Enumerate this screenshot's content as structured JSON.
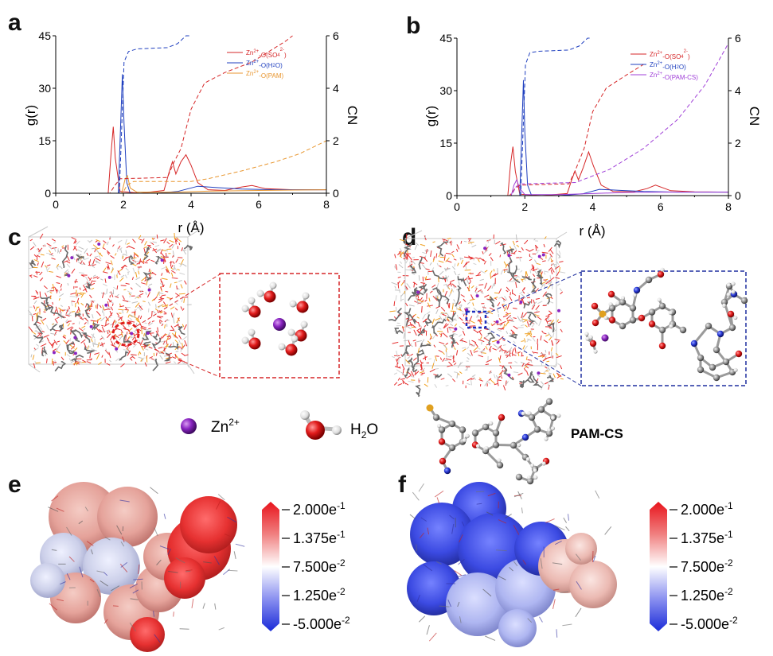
{
  "panels": {
    "a": "a",
    "b": "b",
    "c": "c",
    "d": "d",
    "e": "e",
    "f": "f"
  },
  "chart_data": [
    {
      "panel": "a",
      "type": "line",
      "xlabel": "r (Å)",
      "ylabel": "g(r)",
      "y2label": "CN",
      "xlim": [
        0,
        8
      ],
      "ylim": [
        0,
        45
      ],
      "y2lim": [
        0,
        6
      ],
      "xticks": [
        "0",
        "2",
        "4",
        "6",
        "8"
      ],
      "yticks": [
        "0",
        "15",
        "30",
        "45"
      ],
      "y2ticks": [
        "0",
        "2",
        "4",
        "6"
      ],
      "legend_position": "top-right",
      "series": [
        {
          "name": "Zn²⁺-O(SO₄²⁻)",
          "color": "#d62728",
          "x": [
            0,
            1.55,
            1.64,
            1.7,
            1.76,
            1.9,
            2.5,
            3.2,
            3.35,
            3.45,
            3.55,
            3.7,
            3.85,
            4.0,
            4.2,
            4.5,
            5.0,
            5.5,
            5.8,
            6.2,
            7.0,
            8.0
          ],
          "y": [
            0,
            0,
            12,
            19,
            10,
            0.5,
            0,
            0.8,
            6,
            9,
            5.5,
            9,
            11,
            8,
            3,
            1,
            0.8,
            1.8,
            2.2,
            1.3,
            1,
            1
          ]
        },
        {
          "name": "Zn²⁺-O(H₂O)",
          "color": "#1f3fbf",
          "x": [
            0,
            1.85,
            1.92,
            1.97,
            2.02,
            2.1,
            2.2,
            3.0,
            3.6,
            4.2,
            4.8,
            5.5,
            6.5,
            8.0
          ],
          "y": [
            0,
            0,
            20,
            34,
            20,
            3,
            0,
            0,
            0.5,
            2,
            1.6,
            1.2,
            1,
            1
          ]
        },
        {
          "name": "Zn²⁺-O(PAM)",
          "color": "#e8962f",
          "x": [
            0,
            1.95,
            2.05,
            2.12,
            2.2,
            2.4,
            3.5,
            4.5,
            6.0,
            8.0
          ],
          "y": [
            0,
            0,
            4,
            5,
            1.5,
            0.3,
            0.3,
            0.6,
            0.8,
            1
          ]
        }
      ],
      "cn_series": [
        {
          "name": "Zn²⁺-O(SO₄²⁻) CN",
          "color": "#d62728",
          "x": [
            0,
            1.6,
            1.75,
            1.9,
            3.3,
            3.5,
            3.7,
            4.0,
            4.4,
            5.0,
            5.8,
            6.3,
            6.8,
            7.0
          ],
          "y": [
            0,
            0,
            0.3,
            0.55,
            0.6,
            1.2,
            1.7,
            3.2,
            4.2,
            4.6,
            5.0,
            5.4,
            5.8,
            6.0
          ]
        },
        {
          "name": "Zn²⁺-O(H₂O) CN",
          "color": "#1f3fbf",
          "x": [
            0,
            1.88,
            1.95,
            2.02,
            2.15,
            2.4,
            3.3,
            3.6,
            3.85,
            3.95
          ],
          "y": [
            0,
            0,
            2.5,
            5.0,
            5.4,
            5.5,
            5.55,
            5.7,
            6.0,
            6.0
          ]
        },
        {
          "name": "Zn²⁺-O(PAM) CN",
          "color": "#e8962f",
          "x": [
            0,
            1.98,
            2.1,
            2.3,
            4.0,
            4.5,
            5.5,
            6.5,
            7.2,
            8.0
          ],
          "y": [
            0,
            0,
            0.3,
            0.45,
            0.45,
            0.55,
            0.85,
            1.2,
            1.5,
            2.0
          ]
        }
      ]
    },
    {
      "panel": "b",
      "type": "line",
      "xlabel": "r (Å)",
      "ylabel": "g(r)",
      "y2label": "CN",
      "xlim": [
        0,
        8
      ],
      "ylim": [
        0,
        45
      ],
      "y2lim": [
        0,
        6
      ],
      "xticks": [
        "0",
        "2",
        "4",
        "6",
        "8"
      ],
      "yticks": [
        "0",
        "15",
        "30",
        "45"
      ],
      "y2ticks": [
        "0",
        "2",
        "4",
        "6"
      ],
      "legend_position": "top-right",
      "series": [
        {
          "name": "Zn²⁺-O(SO₄²⁻)",
          "color": "#d62728",
          "x": [
            0,
            1.5,
            1.58,
            1.65,
            1.72,
            1.85,
            2.5,
            3.25,
            3.38,
            3.48,
            3.58,
            3.72,
            3.88,
            4.02,
            4.25,
            4.6,
            5.2,
            5.6,
            5.85,
            6.3,
            7.0,
            8.0
          ],
          "y": [
            0,
            0,
            9,
            14,
            7,
            0.4,
            0,
            0.6,
            4.5,
            7,
            4.5,
            8,
            12.5,
            8.5,
            3,
            1.2,
            1.1,
            2,
            3,
            1.4,
            1.1,
            1
          ]
        },
        {
          "name": "Zn²⁺-O(H₂O)",
          "color": "#1f3fbf",
          "x": [
            0,
            1.85,
            1.91,
            1.96,
            2.0,
            2.08,
            2.2,
            3.0,
            3.7,
            4.2,
            4.8,
            5.5,
            6.5,
            8.0
          ],
          "y": [
            0,
            0,
            18,
            33,
            18,
            3,
            0,
            0,
            0.5,
            1.8,
            1.5,
            1.2,
            1,
            1
          ]
        },
        {
          "name": "Zn²⁺-O(PAM-CS)",
          "color": "#a040d8",
          "x": [
            0,
            1.6,
            1.68,
            1.76,
            1.85,
            2.0,
            3.0,
            4.0,
            5.0,
            6.0,
            8.0
          ],
          "y": [
            0,
            0,
            3,
            4.5,
            2,
            0.3,
            0.3,
            0.6,
            0.9,
            1,
            1
          ]
        }
      ],
      "cn_series": [
        {
          "name": "Zn²⁺-O(SO₄²⁻) CN",
          "color": "#d62728",
          "x": [
            0,
            1.55,
            1.7,
            1.85,
            3.3,
            3.5,
            3.75,
            4.0,
            4.4,
            5.0,
            5.5
          ],
          "y": [
            0,
            0,
            0.25,
            0.4,
            0.45,
            1.0,
            1.8,
            3.2,
            4.1,
            4.6,
            5.0
          ]
        },
        {
          "name": "Zn²⁺-O(H₂O) CN",
          "color": "#1f3fbf",
          "x": [
            0,
            1.88,
            1.95,
            2.02,
            2.15,
            2.4,
            3.3,
            3.6,
            3.85,
            3.95
          ],
          "y": [
            0,
            0,
            2.5,
            5.0,
            5.45,
            5.5,
            5.55,
            5.7,
            6.0,
            6.0
          ]
        },
        {
          "name": "Zn²⁺-O(PAM-CS) CN",
          "color": "#a040d8",
          "x": [
            0,
            1.6,
            1.75,
            1.9,
            3.5,
            4.5,
            5.5,
            6.5,
            7.3,
            8.0
          ],
          "y": [
            0,
            0,
            0.35,
            0.45,
            0.5,
            1.0,
            1.8,
            2.9,
            4.2,
            5.8
          ]
        }
      ]
    }
  ],
  "legend_labels": {
    "a": [
      {
        "pre": "Zn",
        "sup1": "2+",
        "mid": "-O(SO",
        "sub": "4",
        "sup2": "2-",
        "post": ")",
        "color": "#d62728"
      },
      {
        "pre": "Zn",
        "sup1": "2+",
        "mid": "-O(H",
        "sub": "2",
        "sup2": "",
        "post": "O)",
        "color": "#1f3fbf"
      },
      {
        "pre": "Zn",
        "sup1": "2+",
        "mid": "-O(PAM)",
        "sub": "",
        "sup2": "",
        "post": "",
        "color": "#e8962f"
      }
    ],
    "b": [
      {
        "pre": "Zn",
        "sup1": "2+",
        "mid": "-O(SO",
        "sub": "4",
        "sup2": "2-",
        "post": ")",
        "color": "#d62728"
      },
      {
        "pre": "Zn",
        "sup1": "2+",
        "mid": "-O(H",
        "sub": "2",
        "sup2": "",
        "post": "O)",
        "color": "#1f3fbf"
      },
      {
        "pre": "Zn",
        "sup1": "2+",
        "mid": "-O(PAM-CS)",
        "sub": "",
        "sup2": "",
        "post": "",
        "color": "#a040d8"
      }
    ]
  },
  "species_legend": {
    "zn_label": "Zn",
    "zn_sup": "2+",
    "water_label": "H",
    "water_sub": "2",
    "water_post": "O",
    "pamcs_label": "PAM-CS"
  },
  "colorbar": {
    "ticks": [
      "2.000e",
      "1.375e",
      "7.500e",
      "1.250e",
      "-5.000e"
    ],
    "exponents": [
      "-1",
      "-1",
      "-2",
      "-2",
      "-2"
    ],
    "max_color": "#e8141c",
    "mid_color": "#ffffff",
    "min_color": "#1a2bd8"
  }
}
